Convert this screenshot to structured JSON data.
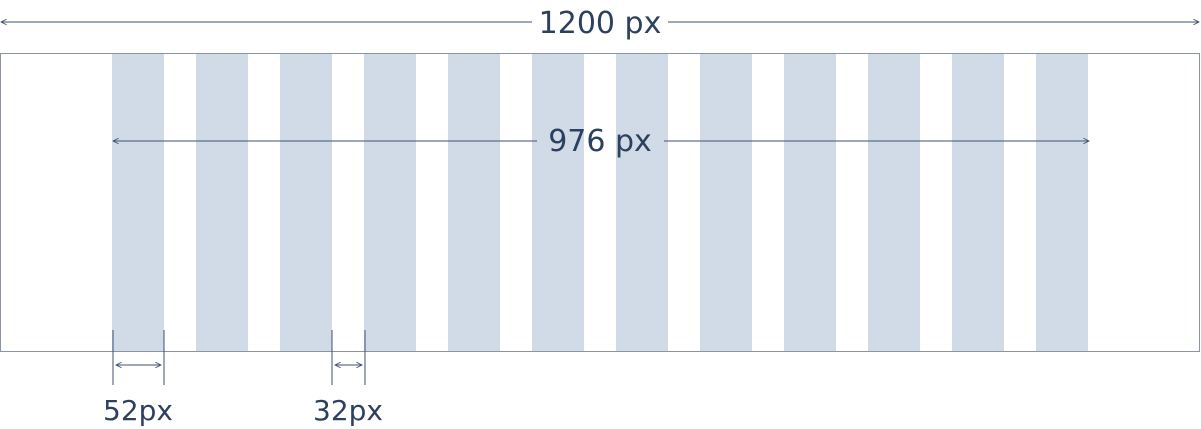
{
  "diagram": {
    "total_width_label": "1200 px",
    "content_width_label": "976 px",
    "column_width_label": "52px",
    "gutter_width_label": "32px",
    "column_count": 12,
    "colors": {
      "column_fill": "#d1dbe8",
      "frame_stroke": "#8a94a3",
      "dimension_line": "#3d5070",
      "label_text": "#2e4060"
    }
  }
}
